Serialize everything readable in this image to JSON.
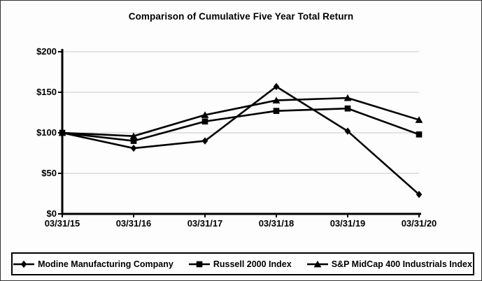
{
  "frame": {
    "background": "#fdfdfd",
    "border_color": "#333333"
  },
  "chart_data": {
    "type": "line",
    "title": "Comparison of Cumulative Five Year Total Return",
    "categories": [
      "03/31/15",
      "03/31/16",
      "03/31/17",
      "03/31/18",
      "03/31/19",
      "03/31/20"
    ],
    "series": [
      {
        "name": "Modine Manufacturing Company",
        "marker": "diamond",
        "color": "#000000",
        "values": [
          100,
          81,
          90,
          157,
          102,
          24
        ]
      },
      {
        "name": "Russell 2000 Index",
        "marker": "square",
        "color": "#000000",
        "values": [
          100,
          90,
          114,
          127,
          130,
          98
        ]
      },
      {
        "name": "S&P MidCap 400 Industrials Index",
        "marker": "triangle",
        "color": "#000000",
        "values": [
          100,
          96,
          122,
          140,
          143,
          116
        ]
      }
    ],
    "xlabel": "",
    "ylabel": "",
    "ylim": [
      0,
      200
    ],
    "yticks": [
      0,
      50,
      100,
      150,
      200
    ],
    "ytick_labels": [
      "$0",
      "$50",
      "$100",
      "$150",
      "$200"
    ],
    "grid": true,
    "gridline_color": "#c6c6c6",
    "axis_color": "#000000",
    "legend_position": "bottom"
  }
}
